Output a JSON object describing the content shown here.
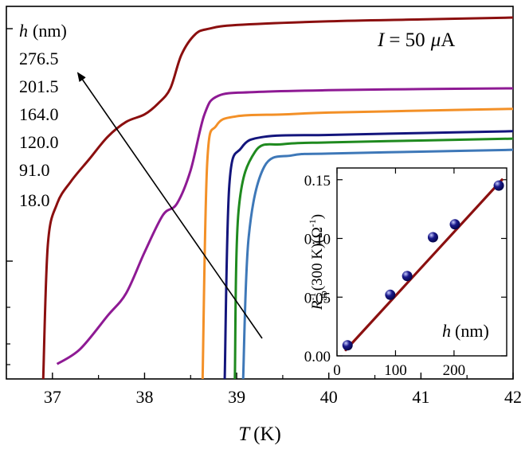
{
  "chart_data": [
    {
      "type": "line",
      "xlabel_symbol": "T",
      "xlabel_unit": "(K)",
      "xlim": [
        36.5,
        42
      ],
      "xticks": [
        "37",
        "38",
        "39",
        "40",
        "41",
        "42"
      ],
      "y_scale": "log",
      "annotation": {
        "lhs": "I",
        "rhs": "= 50",
        "unit_symbol": "μ",
        "unit": "A"
      },
      "legend": {
        "title_symbol": "h",
        "title_unit": "(nm)",
        "entries": [
          "276.5",
          "201.5",
          "164.0",
          "120.0",
          "91.0",
          "18.0"
        ],
        "arrow": "increasing thickness"
      },
      "series": [
        {
          "h_nm": 276.5,
          "color": "#8b0f0f",
          "points": [
            [
              36.9,
              0.0
            ],
            [
              36.95,
              0.36
            ],
            [
              37.05,
              0.47
            ],
            [
              37.2,
              0.53
            ],
            [
              37.4,
              0.59
            ],
            [
              37.6,
              0.65
            ],
            [
              37.8,
              0.69
            ],
            [
              38.0,
              0.71
            ],
            [
              38.15,
              0.74
            ],
            [
              38.28,
              0.78
            ],
            [
              38.4,
              0.87
            ],
            [
              38.55,
              0.925
            ],
            [
              38.7,
              0.94
            ],
            [
              39.0,
              0.95
            ],
            [
              40.0,
              0.96
            ],
            [
              41.0,
              0.965
            ],
            [
              42.0,
              0.97
            ]
          ]
        },
        {
          "h_nm": 201.5,
          "color": "#8e1a94",
          "points": [
            [
              37.05,
              0.04
            ],
            [
              37.3,
              0.08
            ],
            [
              37.6,
              0.17
            ],
            [
              37.8,
              0.23
            ],
            [
              38.0,
              0.34
            ],
            [
              38.2,
              0.44
            ],
            [
              38.35,
              0.47
            ],
            [
              38.5,
              0.56
            ],
            [
              38.65,
              0.71
            ],
            [
              38.8,
              0.76
            ],
            [
              39.2,
              0.77
            ],
            [
              40.0,
              0.775
            ],
            [
              41.0,
              0.778
            ],
            [
              42.0,
              0.78
            ]
          ]
        },
        {
          "h_nm": 164.0,
          "color": "#f39027",
          "points": [
            [
              38.63,
              0.0
            ],
            [
              38.68,
              0.58
            ],
            [
              38.78,
              0.68
            ],
            [
              39.0,
              0.705
            ],
            [
              39.5,
              0.71
            ],
            [
              40.0,
              0.715
            ],
            [
              41.0,
              0.72
            ],
            [
              42.0,
              0.725
            ]
          ]
        },
        {
          "h_nm": 120.0,
          "color": "#13157c",
          "points": [
            [
              38.87,
              0.0
            ],
            [
              38.92,
              0.52
            ],
            [
              39.05,
              0.62
            ],
            [
              39.3,
              0.65
            ],
            [
              40.0,
              0.655
            ],
            [
              41.0,
              0.66
            ],
            [
              42.0,
              0.665
            ]
          ]
        },
        {
          "h_nm": 91.0,
          "color": "#1f8a1f",
          "points": [
            [
              38.98,
              0.0
            ],
            [
              39.02,
              0.45
            ],
            [
              39.2,
              0.61
            ],
            [
              39.5,
              0.63
            ],
            [
              40.0,
              0.635
            ],
            [
              41.0,
              0.64
            ],
            [
              42.0,
              0.645
            ]
          ]
        },
        {
          "h_nm": 18.0,
          "color": "#3e78b8",
          "points": [
            [
              39.07,
              0.0
            ],
            [
              39.13,
              0.38
            ],
            [
              39.3,
              0.57
            ],
            [
              39.6,
              0.6
            ],
            [
              40.0,
              0.605
            ],
            [
              41.0,
              0.61
            ],
            [
              42.0,
              0.615
            ]
          ]
        }
      ]
    },
    {
      "type": "scatter",
      "inset": true,
      "ylabel_parts": {
        "symbol": "R",
        "sup": "-1",
        "sub": "ab",
        "rest": "(300 K)(Ω",
        "sup2": "-1",
        "close": ")"
      },
      "xlabel_symbol": "h",
      "xlabel_unit": "(nm)",
      "xlim": [
        0,
        290
      ],
      "ylim": [
        0,
        0.16
      ],
      "xticks": [
        "0",
        "100",
        "200"
      ],
      "yticks": [
        "0.00",
        "0.05",
        "0.10",
        "0.15"
      ],
      "marker_color": "#1a1a8c",
      "fit_color": "#8b1010",
      "points": [
        [
          18.0,
          0.009
        ],
        [
          91.0,
          0.052
        ],
        [
          120.0,
          0.068
        ],
        [
          164.0,
          0.101
        ],
        [
          201.5,
          0.112
        ],
        [
          276.5,
          0.145
        ]
      ],
      "fit_line": [
        [
          15,
          0.005
        ],
        [
          282,
          0.15
        ]
      ]
    }
  ]
}
